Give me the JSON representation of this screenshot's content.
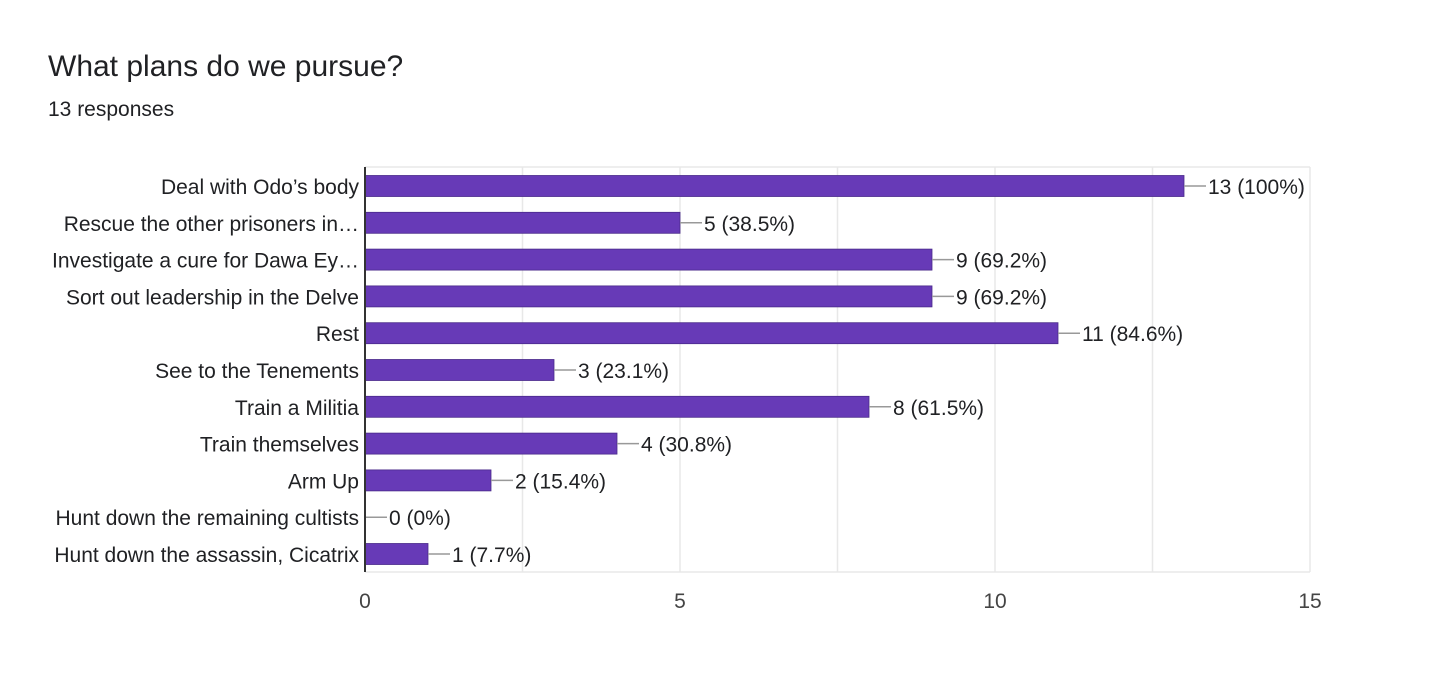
{
  "header": {
    "title": "What plans do we pursue?",
    "subtitle": "13 responses"
  },
  "colors": {
    "bar": "#673ab7",
    "grid": "#e8e8e8",
    "axis": "#333333",
    "text": "#202124",
    "leader": "#999999"
  },
  "chart_data": {
    "type": "bar",
    "orientation": "horizontal",
    "title": "What plans do we pursue?",
    "subtitle": "13 responses",
    "categories": [
      "Deal with Odo’s body",
      "Rescue the other prisoners in…",
      "Investigate a cure for Dawa Ey…",
      "Sort out leadership in the Delve",
      "Rest",
      "See to the Tenements",
      "Train a Militia",
      "Train themselves",
      "Arm Up",
      "Hunt down the remaining cultists",
      "Hunt down the assassin, Cicatrix"
    ],
    "values": [
      13,
      5,
      9,
      9,
      11,
      3,
      8,
      4,
      2,
      0,
      1
    ],
    "data_labels": [
      "13 (100%)",
      "5 (38.5%)",
      "9 (69.2%)",
      "9 (69.2%)",
      "11 (84.6%)",
      "3 (23.1%)",
      "8 (61.5%)",
      "4 (30.8%)",
      "2 (15.4%)",
      "0 (0%)",
      "1 (7.7%)"
    ],
    "xlim": [
      0,
      15
    ],
    "xticks": [
      0,
      5,
      10,
      15
    ],
    "xtick_labels": [
      "0",
      "5",
      "10",
      "15"
    ],
    "grid": true,
    "legend": "none"
  }
}
